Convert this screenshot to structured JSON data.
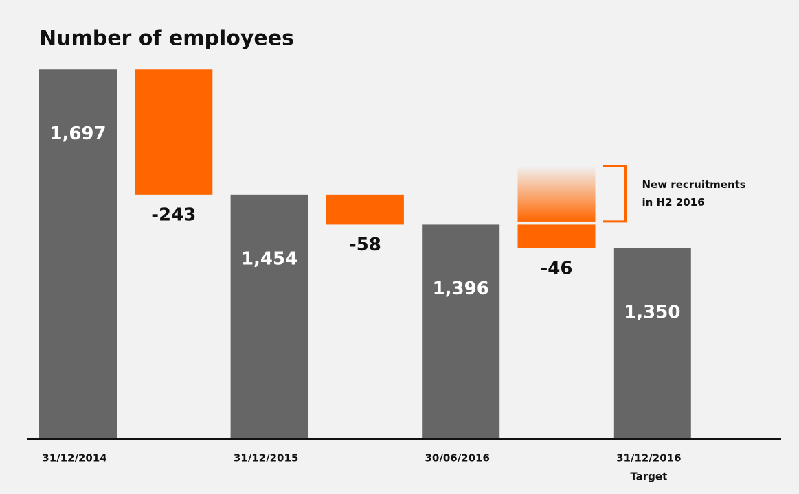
{
  "chart_data": {
    "type": "waterfall",
    "title": "Number of employees",
    "categories": [
      "31/12/2014",
      null,
      "31/12/2015",
      null,
      "30/06/2016",
      null,
      "31/12/2016"
    ],
    "target_label": "Target",
    "kinds": [
      "total",
      "delta",
      "total",
      "delta",
      "total",
      "delta",
      "total"
    ],
    "values": [
      1697,
      -243,
      1454,
      -58,
      1396,
      -46,
      1350
    ],
    "value_labels": [
      "1,697",
      "-243",
      "1,454",
      "-58",
      "1,396",
      "-46",
      "1,350"
    ],
    "total_color": "#666666",
    "delta_color": "#ff6600",
    "ylim": [
      980,
      1700
    ],
    "annotation": {
      "lines": [
        "New recruitments",
        "in H2 2016"
      ],
      "range": [
        1402,
        1510
      ]
    }
  }
}
